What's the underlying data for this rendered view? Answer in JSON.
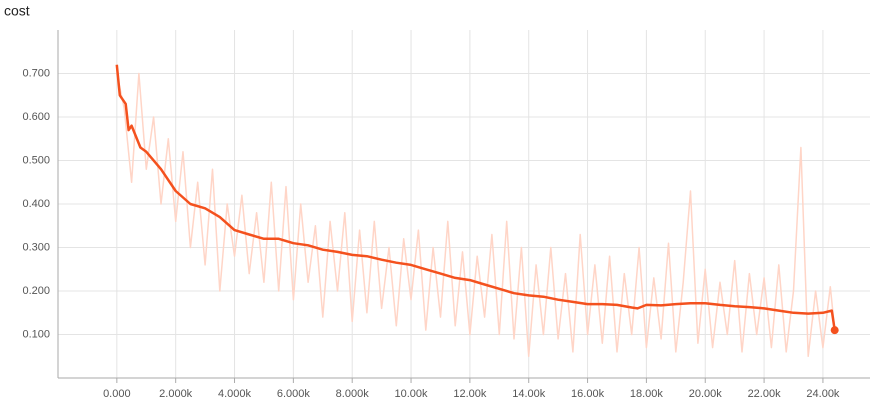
{
  "chart_data": {
    "type": "line",
    "title": "cost",
    "xlim": [
      -2000,
      25600
    ],
    "ylim": [
      0,
      0.8
    ],
    "grid": true,
    "xticks": [
      {
        "value": 0,
        "label": "0.000"
      },
      {
        "value": 2000,
        "label": "2.000k"
      },
      {
        "value": 4000,
        "label": "4.000k"
      },
      {
        "value": 6000,
        "label": "6.000k"
      },
      {
        "value": 8000,
        "label": "8.000k"
      },
      {
        "value": 10000,
        "label": "10.00k"
      },
      {
        "value": 12000,
        "label": "12.00k"
      },
      {
        "value": 14000,
        "label": "14.00k"
      },
      {
        "value": 16000,
        "label": "16.00k"
      },
      {
        "value": 18000,
        "label": "18.00k"
      },
      {
        "value": 20000,
        "label": "20.00k"
      },
      {
        "value": 22000,
        "label": "22.00k"
      },
      {
        "value": 24000,
        "label": "24.00k"
      }
    ],
    "yticks": [
      {
        "value": 0.1,
        "label": "0.100"
      },
      {
        "value": 0.2,
        "label": "0.200"
      },
      {
        "value": 0.3,
        "label": "0.300"
      },
      {
        "value": 0.4,
        "label": "0.400"
      },
      {
        "value": 0.5,
        "label": "0.500"
      },
      {
        "value": 0.6,
        "label": "0.600"
      },
      {
        "value": 0.7,
        "label": "0.700"
      }
    ],
    "series": [
      {
        "color": "#ffd5c7",
        "x": [
          0,
          250,
          500,
          750,
          1000,
          1250,
          1500,
          1750,
          2000,
          2250,
          2500,
          2750,
          3000,
          3250,
          3500,
          3750,
          4000,
          4250,
          4500,
          4750,
          5000,
          5250,
          5500,
          5750,
          6000,
          6250,
          6500,
          6750,
          7000,
          7250,
          7500,
          7750,
          8000,
          8250,
          8500,
          8750,
          9000,
          9250,
          9500,
          9750,
          10000,
          10250,
          10500,
          10750,
          11000,
          11250,
          11500,
          11750,
          12000,
          12250,
          12500,
          12750,
          13000,
          13250,
          13500,
          13750,
          14000,
          14250,
          14500,
          14750,
          15000,
          15250,
          15500,
          15750,
          16000,
          16250,
          16500,
          16750,
          17000,
          17250,
          17500,
          17750,
          18000,
          18250,
          18500,
          18750,
          19000,
          19250,
          19500,
          19750,
          20000,
          20250,
          20500,
          20750,
          21000,
          21250,
          21500,
          21750,
          22000,
          22250,
          22500,
          22750,
          23000,
          23250,
          23500,
          23750,
          24000,
          24250,
          24400
        ],
        "values": [
          0.7,
          0.62,
          0.45,
          0.7,
          0.48,
          0.6,
          0.4,
          0.55,
          0.36,
          0.52,
          0.3,
          0.45,
          0.26,
          0.48,
          0.2,
          0.4,
          0.28,
          0.42,
          0.24,
          0.38,
          0.22,
          0.45,
          0.2,
          0.44,
          0.18,
          0.4,
          0.22,
          0.35,
          0.14,
          0.36,
          0.2,
          0.38,
          0.13,
          0.34,
          0.15,
          0.36,
          0.16,
          0.3,
          0.12,
          0.32,
          0.18,
          0.34,
          0.11,
          0.3,
          0.14,
          0.36,
          0.12,
          0.29,
          0.1,
          0.28,
          0.14,
          0.33,
          0.1,
          0.36,
          0.09,
          0.3,
          0.05,
          0.26,
          0.1,
          0.3,
          0.09,
          0.24,
          0.06,
          0.33,
          0.1,
          0.26,
          0.08,
          0.28,
          0.06,
          0.24,
          0.1,
          0.3,
          0.07,
          0.23,
          0.09,
          0.31,
          0.06,
          0.22,
          0.43,
          0.08,
          0.25,
          0.07,
          0.22,
          0.1,
          0.27,
          0.06,
          0.24,
          0.1,
          0.23,
          0.07,
          0.26,
          0.06,
          0.2,
          0.53,
          0.05,
          0.2,
          0.07,
          0.21,
          0.11
        ]
      },
      {
        "color": "#f4511e",
        "x": [
          0,
          100,
          300,
          400,
          500,
          800,
          1000,
          1500,
          2000,
          2500,
          3000,
          3500,
          4000,
          4500,
          5000,
          5500,
          6000,
          6500,
          7000,
          7500,
          8000,
          8500,
          9000,
          9500,
          10000,
          10500,
          11000,
          11500,
          12000,
          12500,
          13000,
          13500,
          14000,
          14500,
          15000,
          15500,
          16000,
          16500,
          17000,
          17500,
          17700,
          18000,
          18500,
          19000,
          19500,
          20000,
          20500,
          21000,
          21500,
          22000,
          22500,
          23000,
          23500,
          24000,
          24300,
          24400
        ],
        "values": [
          0.72,
          0.65,
          0.63,
          0.57,
          0.58,
          0.53,
          0.52,
          0.48,
          0.43,
          0.4,
          0.39,
          0.37,
          0.34,
          0.33,
          0.32,
          0.32,
          0.31,
          0.305,
          0.295,
          0.29,
          0.283,
          0.28,
          0.272,
          0.265,
          0.26,
          0.25,
          0.24,
          0.23,
          0.225,
          0.215,
          0.205,
          0.195,
          0.19,
          0.187,
          0.18,
          0.175,
          0.17,
          0.17,
          0.168,
          0.162,
          0.16,
          0.168,
          0.167,
          0.17,
          0.172,
          0.172,
          0.168,
          0.165,
          0.163,
          0.16,
          0.155,
          0.15,
          0.148,
          0.15,
          0.155,
          0.11
        ]
      }
    ]
  }
}
